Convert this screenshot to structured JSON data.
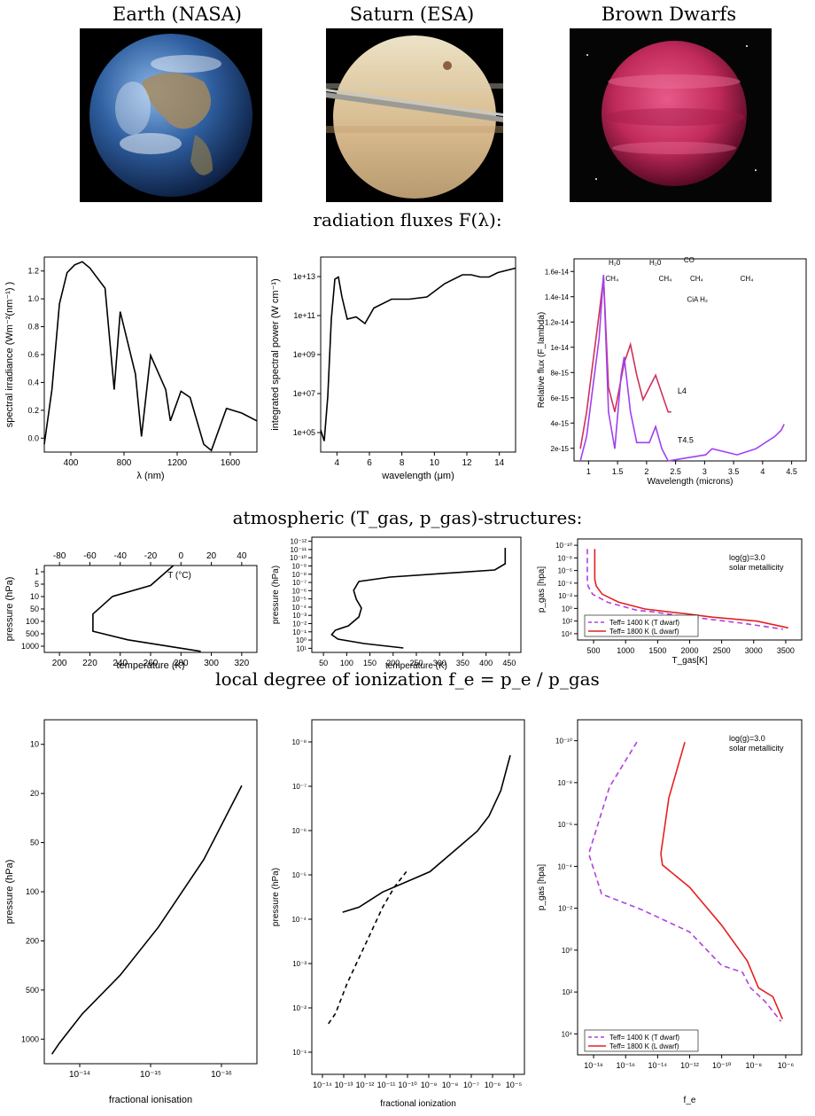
{
  "headers": {
    "earth": "Earth (NASA)",
    "saturn": "Saturn (ESA)",
    "dwarfs": "Brown Dwarfs"
  },
  "sections": {
    "flux": "radiation fluxes F(λ):",
    "structure": "atmospheric (T_gas, p_gas)-structures:",
    "ionization": "local degree of ionization f_e = p_e / p_gas"
  },
  "colors": {
    "dwarf_T": "#b040e0",
    "dwarf_L": "#e52020",
    "L4": "#d0305a",
    "T45": "#a040f0"
  },
  "chart_data": [
    {
      "id": "earth_flux",
      "type": "line",
      "xlabel": "λ (nm)",
      "ylabel": "spectral irradiance (Wm⁻²(nm⁻¹) )",
      "xticks": [
        "400",
        "800",
        "1200",
        "1600"
      ],
      "yticks": [
        "0.0",
        "0.2",
        "0.4",
        "0.6",
        "0.8",
        "1.0",
        "1.2"
      ],
      "xlim": [
        300,
        1700
      ],
      "ylim": [
        0,
        1.25
      ],
      "series": [
        {
          "x": [
            300,
            350,
            400,
            450,
            500,
            550,
            600,
            700,
            760,
            800,
            900,
            940,
            1000,
            1100,
            1130,
            1200,
            1260,
            1350,
            1400,
            1500,
            1600,
            1700
          ],
          "y": [
            0.05,
            0.4,
            0.95,
            1.15,
            1.2,
            1.22,
            1.18,
            1.05,
            0.4,
            0.9,
            0.5,
            0.1,
            0.62,
            0.4,
            0.2,
            0.39,
            0.35,
            0.05,
            0.01,
            0.28,
            0.25,
            0.2
          ]
        }
      ]
    },
    {
      "id": "saturn_flux",
      "type": "line",
      "yscale": "log",
      "xlabel": "wavelength (μm)",
      "ylabel": "integrated spectral power (W cm⁻¹)",
      "xticks": [
        "4",
        "6",
        "8",
        "10",
        "12",
        "14"
      ],
      "yticks": [
        "1e+05",
        "1e+07",
        "1e+09",
        "1e+11",
        "1e+13"
      ],
      "xlim": [
        4,
        15
      ],
      "ylim": [
        5,
        13.8
      ],
      "series": [
        {
          "x": [
            4,
            4.2,
            4.4,
            4.6,
            4.8,
            5,
            5.2,
            5.5,
            6,
            6.5,
            7,
            8,
            9,
            10,
            11,
            12,
            12.5,
            13,
            13.5,
            14,
            15
          ],
          "y": [
            6,
            5.5,
            7.5,
            11,
            12.8,
            12.9,
            12,
            11,
            11.1,
            10.8,
            11.5,
            11.9,
            11.9,
            12,
            12.6,
            13,
            13,
            12.9,
            12.9,
            13.1,
            13.3
          ]
        }
      ]
    },
    {
      "id": "dwarf_flux",
      "type": "line",
      "xlabel": "Wavelength (microns)",
      "ylabel": "Relative flux (F_lambda)",
      "xticks": [
        "1",
        "1.5",
        "2",
        "2.5",
        "3",
        "3.5",
        "4",
        "4.5"
      ],
      "yticks": [
        "2e-15",
        "4e-15",
        "6e-15",
        "8e-15",
        "1e-14",
        "1.2e-14",
        "1.4e-14",
        "1.6e-14"
      ],
      "xlim": [
        0.8,
        4.5
      ],
      "ylim": [
        0,
        1.65e-14
      ],
      "annotations": [
        "H₂0",
        "H₂0",
        "CO",
        "CH₄",
        "CH₄",
        "CH₄",
        "CH₄",
        "CiA H₂"
      ],
      "series": [
        {
          "name": "L4",
          "x": [
            0.9,
            1.0,
            1.1,
            1.2,
            1.27,
            1.35,
            1.45,
            1.6,
            1.7,
            1.8,
            1.9,
            2.0,
            2.1,
            2.2,
            2.3,
            2.35
          ],
          "y": [
            1e-15,
            4e-15,
            8e-15,
            1.2e-14,
            1.5e-14,
            6e-15,
            4e-15,
            8e-15,
            9.5e-15,
            7e-15,
            5e-15,
            6e-15,
            7e-15,
            5.5e-15,
            4e-15,
            4e-15
          ]
        },
        {
          "name": "T4.5",
          "x": [
            0.9,
            1.0,
            1.1,
            1.2,
            1.27,
            1.35,
            1.45,
            1.55,
            1.6,
            1.7,
            1.8,
            2.0,
            2.1,
            2.2,
            2.3,
            2.9,
            3.0,
            3.4,
            3.7,
            4.0,
            4.1,
            4.15
          ],
          "y": [
            0,
            2e-15,
            6e-15,
            1e-14,
            1.52e-14,
            4e-15,
            1e-15,
            7e-15,
            8.5e-15,
            4e-15,
            1.5e-15,
            1.5e-15,
            2.8e-15,
            1e-15,
            0,
            5e-16,
            1e-15,
            5e-16,
            1e-15,
            2e-15,
            2.5e-15,
            3e-15
          ]
        }
      ]
    },
    {
      "id": "earth_struct",
      "type": "line",
      "xlabel": "temperature (K)",
      "ylabel": "pressure (hPa)",
      "top_label": "T (°C)",
      "xticks": [
        "200",
        "220",
        "240",
        "260",
        "280",
        "300",
        "320"
      ],
      "topticks": [
        "-80",
        "-60",
        "-40",
        "-20",
        "0",
        "20",
        "40"
      ],
      "yticks": [
        "1",
        "5",
        "10",
        "50",
        "100",
        "500",
        "1000"
      ],
      "xlim": [
        185,
        325
      ],
      "ylim": [
        1,
        1100
      ],
      "series": [
        {
          "x": [
            270,
            255,
            230,
            217,
            217,
            240,
            288
          ],
          "y": [
            1,
            5,
            12,
            50,
            200,
            400,
            1013
          ]
        }
      ]
    },
    {
      "id": "saturn_struct",
      "type": "line",
      "xlabel": "temperature (K)",
      "ylabel": "pressure (hPa)",
      "xticks": [
        "50",
        "100",
        "150",
        "200",
        "250",
        "300",
        "350",
        "400",
        "450"
      ],
      "yticks": [
        "10⁻¹²",
        "10⁻¹¹",
        "10⁻¹⁰",
        "10⁻⁹",
        "10⁻⁸",
        "10⁻⁷",
        "10⁻⁶",
        "10⁻⁵",
        "10⁻⁴",
        "10⁻³",
        "10⁻²",
        "10⁻¹",
        "10⁰",
        "10¹"
      ],
      "xlim": [
        50,
        450
      ],
      "ylim": [
        -12,
        1
      ],
      "series": [
        {
          "x": [
            420,
            420,
            400,
            200,
            140,
            130,
            135,
            145,
            140,
            120,
            95,
            88,
            100,
            150,
            225
          ],
          "y": [
            -10.8,
            -9,
            -8.3,
            -7.5,
            -7,
            -6,
            -5,
            -4,
            -3,
            -2,
            -1.5,
            -1,
            -0.5,
            0,
            0.5
          ]
        }
      ]
    },
    {
      "id": "dwarf_struct",
      "type": "line",
      "xlabel": "T_gas[K]",
      "ylabel": "p_gas [hpa]",
      "note": [
        "log(g)=3.0",
        "solar metallicity"
      ],
      "xticks": [
        "500",
        "1000",
        "1500",
        "2000",
        "2500",
        "3000",
        "3500"
      ],
      "yticks": [
        "10⁻¹⁰",
        "10⁻⁸",
        "10⁻⁶",
        "10⁻⁴",
        "10⁻²",
        "10⁰",
        "10²",
        "10⁴"
      ],
      "xlim": [
        500,
        3500
      ],
      "ylim": [
        -10,
        5
      ],
      "series": [
        {
          "name": "Teff= 1400 K (T dwarf)",
          "x": [
            630,
            630,
            640,
            700,
            900,
            1300,
            1500,
            1800,
            2100,
            2700,
            3250
          ],
          "y": [
            -8.5,
            -4,
            -3,
            -1.8,
            -0.6,
            0.6,
            0.8,
            1.3,
            1.7,
            2.5,
            3.4
          ]
        },
        {
          "name": "Teff= 1800 K (L dwarf)",
          "x": [
            730,
            730,
            750,
            830,
            1050,
            1400,
            1700,
            1950,
            2300,
            2900,
            3320
          ],
          "y": [
            -8.5,
            -4,
            -3,
            -1.8,
            -0.6,
            0.4,
            0.8,
            1.1,
            1.6,
            2.2,
            3.2
          ]
        }
      ]
    },
    {
      "id": "earth_ion",
      "type": "line",
      "xlabel": "fractional ionisation",
      "ylabel": "pressure (hPa)",
      "xticks": [
        "10⁻¹⁴",
        "10⁻¹⁵",
        "10⁻¹⁶"
      ],
      "yticks": [
        "10",
        "20",
        "50",
        "100",
        "200",
        "500",
        "1000"
      ],
      "xlim": [
        -13.8,
        -16.6
      ],
      "ylim": [
        10,
        1200
      ],
      "series": [
        {
          "x": [
            -13.9,
            -14.0,
            -14.3,
            -14.8,
            -15.3,
            -15.9,
            -16.4
          ],
          "y": [
            1050,
            900,
            600,
            350,
            180,
            70,
            25
          ]
        }
      ]
    },
    {
      "id": "saturn_ion",
      "type": "line",
      "xlabel": "fractional ionization",
      "ylabel": "pressure (hPa)",
      "xticks": [
        "10⁻¹⁴",
        "10⁻¹³",
        "10⁻¹²",
        "10⁻¹¹",
        "10⁻¹⁰",
        "10⁻⁹",
        "10⁻⁸",
        "10⁻⁷",
        "10⁻⁶",
        "10⁻⁵"
      ],
      "yticks": [
        "10⁻⁸",
        "10⁻⁷",
        "10⁻⁶",
        "10⁻⁵",
        "10⁻⁴",
        "10⁻³",
        "10⁻²",
        "10⁻¹"
      ],
      "xlim": [
        -14,
        -5
      ],
      "ylim": [
        -8,
        -1
      ],
      "series": [
        {
          "name": "solid",
          "style": "solid",
          "x": [
            -12.7,
            -12,
            -11,
            -10,
            -9,
            -8,
            -7,
            -6.5,
            -6,
            -5.6
          ],
          "y": [
            -4.2,
            -4.3,
            -4.6,
            -4.8,
            -5.0,
            -5.4,
            -5.8,
            -6.1,
            -6.6,
            -7.3
          ]
        },
        {
          "name": "dashed",
          "style": "dashed",
          "x": [
            -13.3,
            -13,
            -12.5,
            -12,
            -11.5,
            -11,
            -10.5,
            -10
          ],
          "y": [
            -2.0,
            -2.2,
            -2.8,
            -3.3,
            -3.8,
            -4.3,
            -4.7,
            -5.0
          ]
        }
      ]
    },
    {
      "id": "dwarf_ion",
      "type": "line",
      "xlabel": "f_e",
      "ylabel": "p_gas [hpa]",
      "note": [
        "log(g)=3.0",
        "solar metallicity"
      ],
      "xticks": [
        "10⁻¹⁸",
        "10⁻¹⁶",
        "10⁻¹⁴",
        "10⁻¹²",
        "10⁻¹⁰",
        "10⁻⁸",
        "10⁻⁶"
      ],
      "yticks": [
        "10⁻¹⁰",
        "10⁻⁸",
        "10⁻⁶",
        "10⁻⁴",
        "10⁻²",
        "10⁰",
        "10²",
        "10⁴"
      ],
      "xlim": [
        -19,
        -5
      ],
      "ylim": [
        -10,
        5
      ],
      "series": [
        {
          "name": "Teff= 1400 K (T dwarf)",
          "x": [
            -15.3,
            -17,
            -18.3,
            -17.5,
            -15,
            -12,
            -10,
            -8.7,
            -8.2,
            -7.3,
            -6.3
          ],
          "y": [
            -9,
            -7,
            -4,
            -2.2,
            -1.5,
            -0.5,
            1,
            1.3,
            2,
            2.6,
            3.5
          ]
        },
        {
          "name": "Teff= 1800 K (L dwarf)",
          "x": [
            -12.3,
            -13.3,
            -13.8,
            -13.7,
            -12,
            -10,
            -8.4,
            -7.7,
            -6.8,
            -6.2
          ],
          "y": [
            -9,
            -6.5,
            -4,
            -3.5,
            -2.5,
            -0.8,
            0.8,
            2,
            2.4,
            3.4
          ]
        }
      ]
    }
  ]
}
